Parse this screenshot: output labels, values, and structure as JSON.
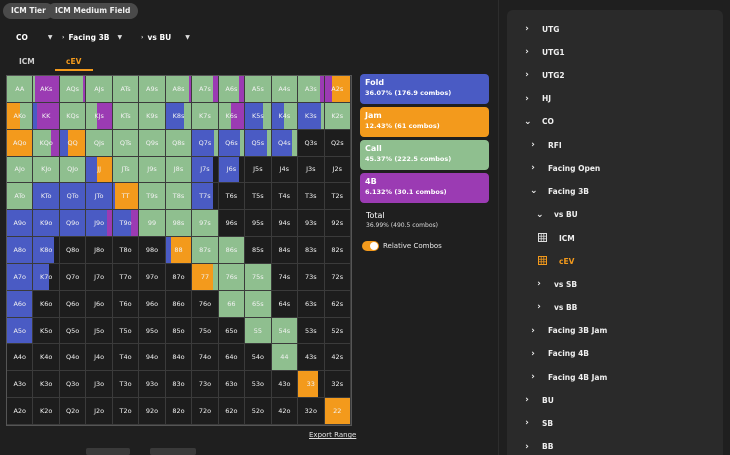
{
  "top_tags": [
    "ICM Tier",
    "ICM Medium Field"
  ],
  "dropdowns": [
    "CO",
    "Facing 3B",
    "vs BU"
  ],
  "tabs": {
    "icm": "ICM",
    "cev": "cEV"
  },
  "colors": {
    "fold": "#4a5bc4",
    "jam": "#f39a1c",
    "call": "#8fbf8f",
    "fourbet": "#9b3bb3",
    "empty": "#1d1d1d",
    "accent": "#f39a1c"
  },
  "grid": {
    "rows": [
      [
        "AA",
        "AKs",
        "AQs",
        "AJs",
        "ATs",
        "A9s",
        "A8s",
        "A7s",
        "A6s",
        "A5s",
        "A4s",
        "A3s",
        "A2s"
      ],
      [
        "AKo",
        "KK",
        "KQs",
        "KJs",
        "KTs",
        "K9s",
        "K8s",
        "K7s",
        "K6s",
        "K5s",
        "K4s",
        "K3s",
        "K2s"
      ],
      [
        "AQo",
        "KQo",
        "QQ",
        "QJs",
        "QTs",
        "Q9s",
        "Q8s",
        "Q7s",
        "Q6s",
        "Q5s",
        "Q4s",
        "Q3s",
        "Q2s"
      ],
      [
        "AJo",
        "KJo",
        "QJo",
        "JJ",
        "JTs",
        "J9s",
        "J8s",
        "J7s",
        "J6s",
        "J5s",
        "J4s",
        "J3s",
        "J2s"
      ],
      [
        "ATo",
        "KTo",
        "QTo",
        "JTo",
        "TT",
        "T9s",
        "T8s",
        "T7s",
        "T6s",
        "T5s",
        "T4s",
        "T3s",
        "T2s"
      ],
      [
        "A9o",
        "K9o",
        "Q9o",
        "J9o",
        "T9o",
        "99",
        "98s",
        "97s",
        "96s",
        "95s",
        "94s",
        "93s",
        "92s"
      ],
      [
        "A8o",
        "K8o",
        "Q8o",
        "J8o",
        "T8o",
        "98o",
        "88",
        "87s",
        "86s",
        "85s",
        "84s",
        "83s",
        "82s"
      ],
      [
        "A7o",
        "K7o",
        "Q7o",
        "J7o",
        "T7o",
        "97o",
        "87o",
        "77",
        "76s",
        "75s",
        "74s",
        "73s",
        "72s"
      ],
      [
        "A6o",
        "K6o",
        "Q6o",
        "J6o",
        "T6o",
        "96o",
        "86o",
        "76o",
        "66",
        "65s",
        "64s",
        "63s",
        "62s"
      ],
      [
        "A5o",
        "K5o",
        "Q5o",
        "J5o",
        "T5o",
        "95o",
        "85o",
        "75o",
        "65o",
        "55",
        "54s",
        "53s",
        "52s"
      ],
      [
        "A4o",
        "K4o",
        "Q4o",
        "J4o",
        "T4o",
        "94o",
        "84o",
        "74o",
        "64o",
        "54o",
        "44",
        "43s",
        "42s"
      ],
      [
        "A3o",
        "K3o",
        "Q3o",
        "J3o",
        "T3o",
        "93o",
        "83o",
        "73o",
        "63o",
        "53o",
        "43o",
        "33",
        "32s"
      ],
      [
        "A2o",
        "K2o",
        "Q2o",
        "J2o",
        "T2o",
        "92o",
        "82o",
        "72o",
        "62o",
        "52o",
        "42o",
        "32o",
        "22"
      ]
    ],
    "mix": [
      [
        "c",
        "c:5,f:3,b:92",
        "c:90,b:10",
        "c",
        "c",
        "c",
        "c:90,b:10",
        "c:80,b:20",
        "c:80,b:20",
        "c",
        "c",
        "c:85,b:15",
        "b:30,j:70"
      ],
      [
        "j:50,c:50",
        "f:15,b:85",
        "c",
        "c:40,b:60",
        "c",
        "c",
        "f:70,c:30",
        "c",
        "c:50,b:50",
        "f:70,c:30",
        "f:50,c:50",
        "f:90,c:10",
        "c"
      ],
      [
        "j:100",
        "c:70,b:30",
        "f:30,j:70",
        "c",
        "c",
        "c",
        "c",
        "f:85,c:15",
        "f:85,c:15",
        "f:85,c:15",
        "f:80,c:20",
        "e",
        "e"
      ],
      [
        "c",
        "c",
        "c",
        "f:40,j:60",
        "c",
        "c",
        "c",
        "f:80,e:20",
        "f:80,e:20",
        "e",
        "e",
        "e",
        "e"
      ],
      [
        "c",
        "f",
        "f",
        "f",
        "f:10,j:90",
        "c",
        "c",
        "f:80,e:20",
        "e",
        "e",
        "e",
        "e",
        "e"
      ],
      [
        "f",
        "f",
        "f",
        "f:80,b:20",
        "f:70,b:30",
        "c",
        "c",
        "c",
        "e",
        "e",
        "e",
        "e",
        "e"
      ],
      [
        "f",
        "f:80,e:20",
        "e",
        "e",
        "e",
        "e",
        "f:20,j:80",
        "c",
        "c",
        "e",
        "e",
        "e",
        "e"
      ],
      [
        "f",
        "f:60,e:40",
        "e",
        "e",
        "e",
        "e",
        "e",
        "j:80,c:20",
        "c",
        "c",
        "e",
        "e",
        "e"
      ],
      [
        "f",
        "e",
        "e",
        "e",
        "e",
        "e",
        "e",
        "e",
        "c",
        "c",
        "e",
        "e",
        "e"
      ],
      [
        "f",
        "e",
        "e",
        "e",
        "e",
        "e",
        "e",
        "e",
        "e",
        "c",
        "c",
        "e",
        "e"
      ],
      [
        "e",
        "e",
        "e",
        "e",
        "e",
        "e",
        "e",
        "e",
        "e",
        "e",
        "c",
        "e",
        "e"
      ],
      [
        "e",
        "e",
        "e",
        "e",
        "e",
        "e",
        "e",
        "e",
        "e",
        "e",
        "e",
        "j:80,e:20",
        "e"
      ],
      [
        "e",
        "e",
        "e",
        "e",
        "e",
        "e",
        "e",
        "e",
        "e",
        "e",
        "e",
        "e",
        "j:100"
      ]
    ]
  },
  "export_label": "Export Range",
  "actions": [
    {
      "label": "Fold",
      "stat": "36.07% (176.9 combos)",
      "color": "#4a5bc4"
    },
    {
      "label": "Jam",
      "stat": "12.43% (61 combos)",
      "color": "#f39a1c"
    },
    {
      "label": "Call",
      "stat": "45.37% (222.5 combos)",
      "color": "#8fbf8f"
    },
    {
      "label": "4B",
      "stat": "6.132% (30.1 combos)",
      "color": "#9b3bb3"
    }
  ],
  "total": {
    "label": "Total",
    "stat": "36.99% (490.5 combos)"
  },
  "toggle_label": "Relative Combos",
  "sidebar": [
    {
      "label": "UTG",
      "chev": "›",
      "level": 0
    },
    {
      "label": "UTG1",
      "chev": "›",
      "level": 0
    },
    {
      "label": "UTG2",
      "chev": "›",
      "level": 0
    },
    {
      "label": "HJ",
      "chev": "›",
      "level": 0
    },
    {
      "label": "CO",
      "chev": "⌄",
      "level": 0
    },
    {
      "label": "RFI",
      "chev": "›",
      "level": 1
    },
    {
      "label": "Facing Open",
      "chev": "›",
      "level": 1
    },
    {
      "label": "Facing 3B",
      "chev": "⌄",
      "level": 1
    },
    {
      "label": "vs BU",
      "chev": "⌄",
      "level": 2
    },
    {
      "label": "ICM",
      "icon": "grid-icon",
      "level": 3
    },
    {
      "label": "cEV",
      "icon": "grid-icon-active",
      "level": 3,
      "active": true
    },
    {
      "label": "vs SB",
      "chev": "›",
      "level": 2
    },
    {
      "label": "vs BB",
      "chev": "›",
      "level": 2
    },
    {
      "label": "Facing 3B Jam",
      "chev": "›",
      "level": 1
    },
    {
      "label": "Facing 4B",
      "chev": "›",
      "level": 1
    },
    {
      "label": "Facing 4B Jam",
      "chev": "›",
      "level": 1
    },
    {
      "label": "BU",
      "chev": "›",
      "level": 0
    },
    {
      "label": "SB",
      "chev": "›",
      "level": 0
    },
    {
      "label": "BB",
      "chev": "›",
      "level": 0
    }
  ]
}
